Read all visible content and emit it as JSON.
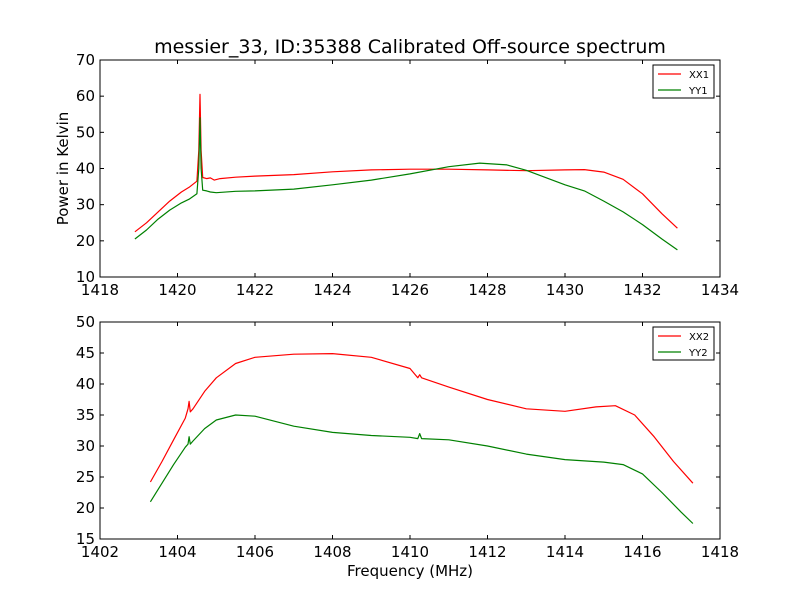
{
  "chart_data": [
    {
      "type": "line",
      "title": "messier_33, ID:35388 Calibrated Off-source spectrum",
      "xlabel": "",
      "ylabel": "Power in Kelvin",
      "xlim": [
        1418,
        1434
      ],
      "ylim": [
        10,
        70
      ],
      "xticks": [
        1418,
        1420,
        1422,
        1424,
        1426,
        1428,
        1430,
        1432,
        1434
      ],
      "yticks": [
        10,
        20,
        30,
        40,
        50,
        60,
        70
      ],
      "grid": false,
      "legend_position": "top-right",
      "series": [
        {
          "name": "XX1",
          "color": "#ff0000",
          "x": [
            1418.9,
            1419.2,
            1419.5,
            1419.8,
            1420.1,
            1420.3,
            1420.5,
            1420.55,
            1420.58,
            1420.61,
            1420.65,
            1420.75,
            1420.85,
            1420.95,
            1421.1,
            1421.5,
            1422,
            1423,
            1424,
            1425,
            1426,
            1427,
            1428,
            1429,
            1430,
            1430.5,
            1431,
            1431.5,
            1432,
            1432.5,
            1432.9
          ],
          "y": [
            22.5,
            25.0,
            28.0,
            31.0,
            33.5,
            34.8,
            36.5,
            45.0,
            60.5,
            45.0,
            37.5,
            37.2,
            37.4,
            36.8,
            37.2,
            37.6,
            37.9,
            38.3,
            39.1,
            39.6,
            39.8,
            39.8,
            39.6,
            39.4,
            39.6,
            39.7,
            39.0,
            37.0,
            33.0,
            27.5,
            23.5
          ]
        },
        {
          "name": "YY1",
          "color": "#008000",
          "x": [
            1418.9,
            1419.2,
            1419.5,
            1419.8,
            1420.1,
            1420.3,
            1420.5,
            1420.55,
            1420.58,
            1420.61,
            1420.65,
            1420.75,
            1420.85,
            1421,
            1421.5,
            1422,
            1423,
            1424,
            1425,
            1426,
            1427,
            1427.8,
            1428.5,
            1429,
            1430,
            1430.5,
            1431,
            1431.5,
            1432,
            1432.5,
            1432.9
          ],
          "y": [
            20.5,
            23.0,
            26.0,
            28.5,
            30.5,
            31.5,
            33.0,
            40.0,
            54.0,
            40.0,
            34.0,
            33.8,
            33.5,
            33.3,
            33.7,
            33.8,
            34.3,
            35.5,
            36.8,
            38.5,
            40.5,
            41.5,
            41.0,
            39.5,
            35.5,
            33.8,
            31.0,
            28.0,
            24.5,
            20.5,
            17.5
          ]
        }
      ]
    },
    {
      "type": "line",
      "title": "",
      "xlabel": "Frequency (MHz)",
      "ylabel": "",
      "xlim": [
        1402,
        1418
      ],
      "ylim": [
        15,
        50
      ],
      "xticks": [
        1402,
        1404,
        1406,
        1408,
        1410,
        1412,
        1414,
        1416,
        1418
      ],
      "yticks": [
        15,
        20,
        25,
        30,
        35,
        40,
        45,
        50
      ],
      "grid": false,
      "legend_position": "top-right",
      "series": [
        {
          "name": "XX2",
          "color": "#ff0000",
          "x": [
            1403.3,
            1403.6,
            1403.9,
            1404.2,
            1404.27,
            1404.3,
            1404.33,
            1404.4,
            1404.7,
            1405,
            1405.5,
            1406,
            1407,
            1408,
            1409,
            1410,
            1410.2,
            1410.25,
            1410.3,
            1411,
            1412,
            1413,
            1414,
            1414.8,
            1415.3,
            1415.8,
            1416.3,
            1416.8,
            1417.3
          ],
          "y": [
            24.2,
            27.5,
            31.0,
            34.5,
            36.0,
            37.2,
            35.5,
            36.0,
            38.8,
            41.0,
            43.3,
            44.3,
            44.8,
            44.9,
            44.3,
            42.5,
            41.0,
            41.5,
            41.0,
            39.5,
            37.5,
            36.0,
            35.6,
            36.3,
            36.5,
            35.0,
            31.5,
            27.5,
            24.0
          ]
        },
        {
          "name": "YY2",
          "color": "#008000",
          "x": [
            1403.3,
            1403.6,
            1403.9,
            1404.2,
            1404.27,
            1404.3,
            1404.33,
            1404.4,
            1404.7,
            1405,
            1405.5,
            1406,
            1407,
            1408,
            1409,
            1410,
            1410.2,
            1410.25,
            1410.3,
            1411,
            1412,
            1413,
            1414,
            1415,
            1415.5,
            1416,
            1416.5,
            1417,
            1417.3
          ],
          "y": [
            21.0,
            24.0,
            27.0,
            29.8,
            30.3,
            31.5,
            30.3,
            30.8,
            32.8,
            34.2,
            35.0,
            34.8,
            33.2,
            32.2,
            31.7,
            31.4,
            31.2,
            32.0,
            31.2,
            31.0,
            30.0,
            28.7,
            27.8,
            27.4,
            27.0,
            25.5,
            22.5,
            19.3,
            17.5
          ]
        }
      ]
    }
  ]
}
